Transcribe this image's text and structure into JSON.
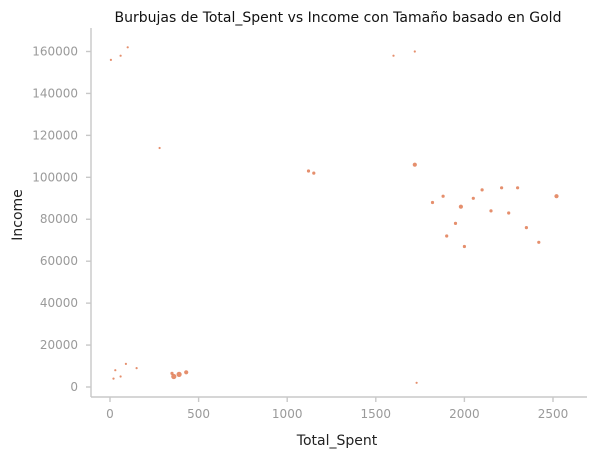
{
  "chart_data": {
    "type": "scatter",
    "title": "Burbujas de Total_Spent vs Income con Tamaño basado en Gold",
    "xlabel": "Total_Spent",
    "ylabel": "Income",
    "xlim": [
      -100,
      2650
    ],
    "ylim": [
      -6000,
      172000
    ],
    "xticks": [
      0,
      500,
      1000,
      1500,
      2000,
      2500
    ],
    "yticks": [
      0,
      20000,
      40000,
      60000,
      80000,
      100000,
      120000,
      140000,
      160000
    ],
    "grid": false,
    "legend": "none",
    "marker_color": "#e07b54",
    "size_encoding": "Gold",
    "points": [
      [
        5,
        156000,
        1
      ],
      [
        60,
        158000,
        1
      ],
      [
        100,
        162000,
        1
      ],
      [
        1720,
        160000,
        1
      ],
      [
        1600,
        158000,
        1
      ],
      [
        280,
        114000,
        1
      ],
      [
        1720,
        106000,
        3
      ],
      [
        1120,
        103000,
        2
      ],
      [
        1150,
        102000,
        2
      ],
      [
        360,
        5000,
        4
      ],
      [
        390,
        6000,
        4
      ],
      [
        430,
        7000,
        3
      ],
      [
        350,
        6500,
        2
      ],
      [
        1730,
        2000,
        1
      ],
      [
        20,
        4000,
        1
      ],
      [
        30,
        8000,
        1
      ],
      [
        60,
        5000,
        1
      ],
      [
        90,
        11000,
        1
      ],
      [
        150,
        9000,
        1
      ],
      [
        2520,
        91000,
        3
      ],
      [
        2350,
        76000,
        2
      ],
      [
        2420,
        69000,
        2
      ],
      [
        2300,
        95000,
        2
      ],
      [
        2210,
        95000,
        2
      ],
      [
        2100,
        94000,
        2
      ],
      [
        2050,
        90000,
        2
      ],
      [
        1980,
        86000,
        3
      ],
      [
        1950,
        78000,
        2
      ],
      [
        1900,
        72000,
        2
      ],
      [
        2150,
        84000,
        2
      ],
      [
        2250,
        83000,
        2
      ],
      [
        2000,
        67000,
        2
      ],
      [
        1880,
        91000,
        2
      ],
      [
        1820,
        88000,
        2
      ]
    ]
  }
}
